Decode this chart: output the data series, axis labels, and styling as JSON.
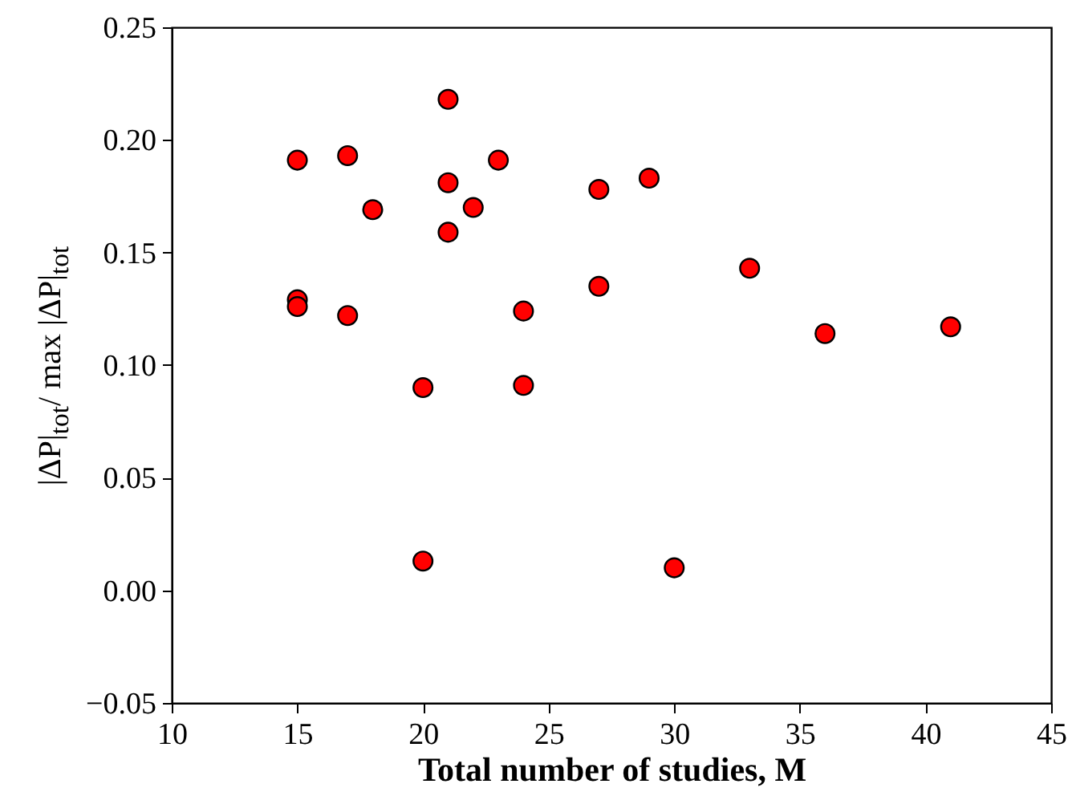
{
  "chart_data": {
    "type": "scatter",
    "xlabel": "Total number of studies, M",
    "ylabel": "|ΔP|$_{tot}$/ max |ΔP|$_{tot}$",
    "x": [
      15,
      15,
      15,
      17,
      17,
      18,
      20,
      20,
      21,
      21,
      21,
      22,
      23,
      24,
      24,
      27,
      27,
      29,
      30,
      33,
      36,
      41
    ],
    "series": [
      {
        "color": "#ff0000",
        "values": [
          0.191,
          0.129,
          0.126,
          0.193,
          0.122,
          0.169,
          0.09,
          0.013,
          0.218,
          0.181,
          0.159,
          0.17,
          0.191,
          0.124,
          0.091,
          0.178,
          0.135,
          0.183,
          0.01,
          0.143,
          0.114,
          0.117
        ]
      }
    ],
    "xlim": [
      10,
      45
    ],
    "xticks": [
      10,
      15,
      20,
      25,
      30,
      35,
      40,
      45
    ],
    "ylim": [
      -0.05,
      0.25
    ],
    "yticks": [
      {
        "value": -0.05,
        "label": "−0.05"
      },
      {
        "value": 0,
        "label": "0.00"
      },
      {
        "value": 0.05,
        "label": "0.05"
      },
      {
        "value": 0.1,
        "label": "0.10"
      },
      {
        "value": 0.15,
        "label": "0.15"
      },
      {
        "value": 0.2,
        "label": "0.20"
      },
      {
        "value": 0.25,
        "label": "0.25"
      }
    ],
    "grid": false,
    "marker": "circle"
  }
}
